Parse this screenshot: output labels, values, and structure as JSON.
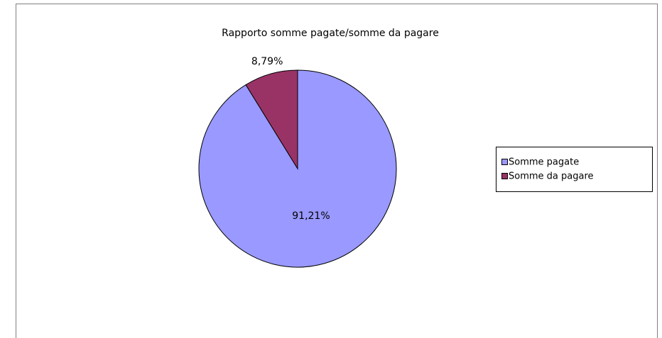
{
  "chart_data": {
    "type": "pie",
    "title": "Rapporto somme pagate/somme da pagare",
    "categories": [
      "Somme pagate",
      "Somme da pagare"
    ],
    "values": [
      91.21,
      8.79
    ],
    "value_labels": [
      "91,21%",
      "8,79%"
    ],
    "colors": [
      "#9999ff",
      "#993366"
    ],
    "legend": "right"
  }
}
